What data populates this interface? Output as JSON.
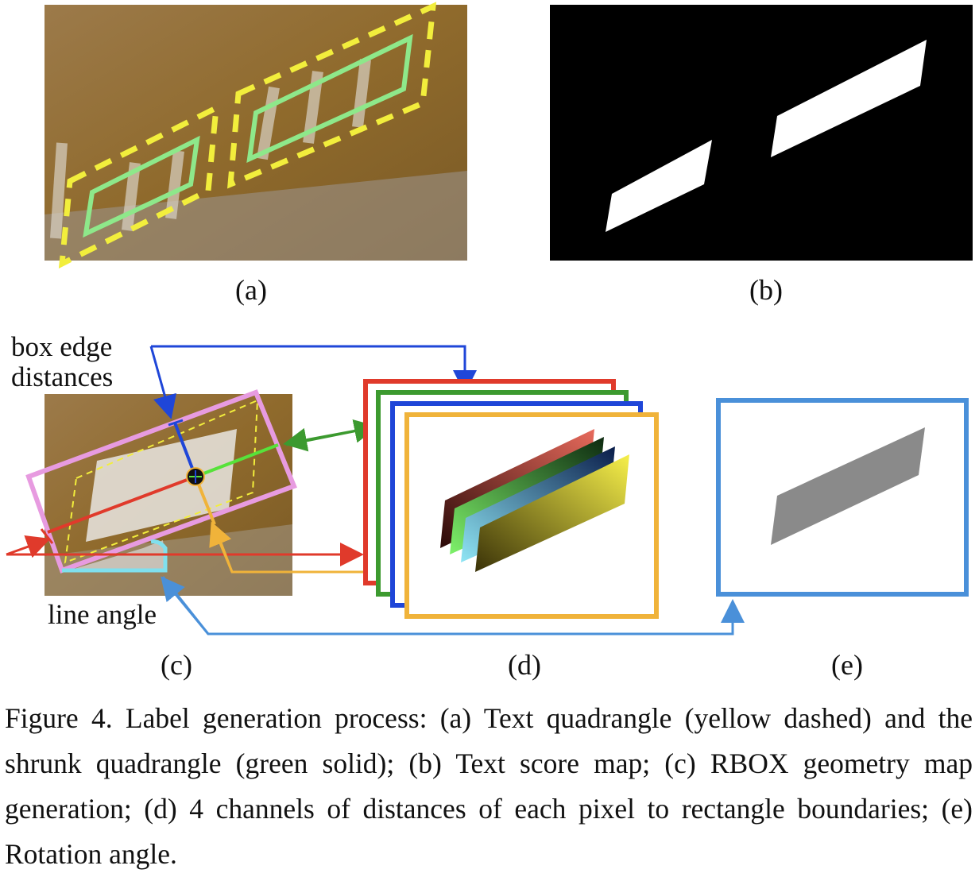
{
  "figure": {
    "subfigure_labels": {
      "a": "(a)",
      "b": "(b)",
      "c": "(c)",
      "d": "(d)",
      "e": "(e)"
    },
    "annotations": {
      "box_edge_line1": "box edge",
      "box_edge_line2": "distances",
      "line_angle": "line angle"
    },
    "colors": {
      "quad_yellow": "#f2ee3c",
      "shrunk_green": "#8ee88a",
      "pink_box": "#e79be0",
      "red": "#e03a2b",
      "green": "#3c9a2f",
      "blue": "#1f46d8",
      "orange": "#f0b33a",
      "light_blue": "#4a90d9",
      "cyan": "#7fe0ee",
      "gray_map": "#8a8a8a"
    },
    "caption": "Figure 4. Label generation process: (a) Text quadrangle (yellow dashed) and the shrunk quadrangle (green solid); (b) Text score map; (c) RBOX geometry map generation; (d) 4 channels of distances of each pixel to rectangle boundaries; (e) Rotation angle."
  }
}
